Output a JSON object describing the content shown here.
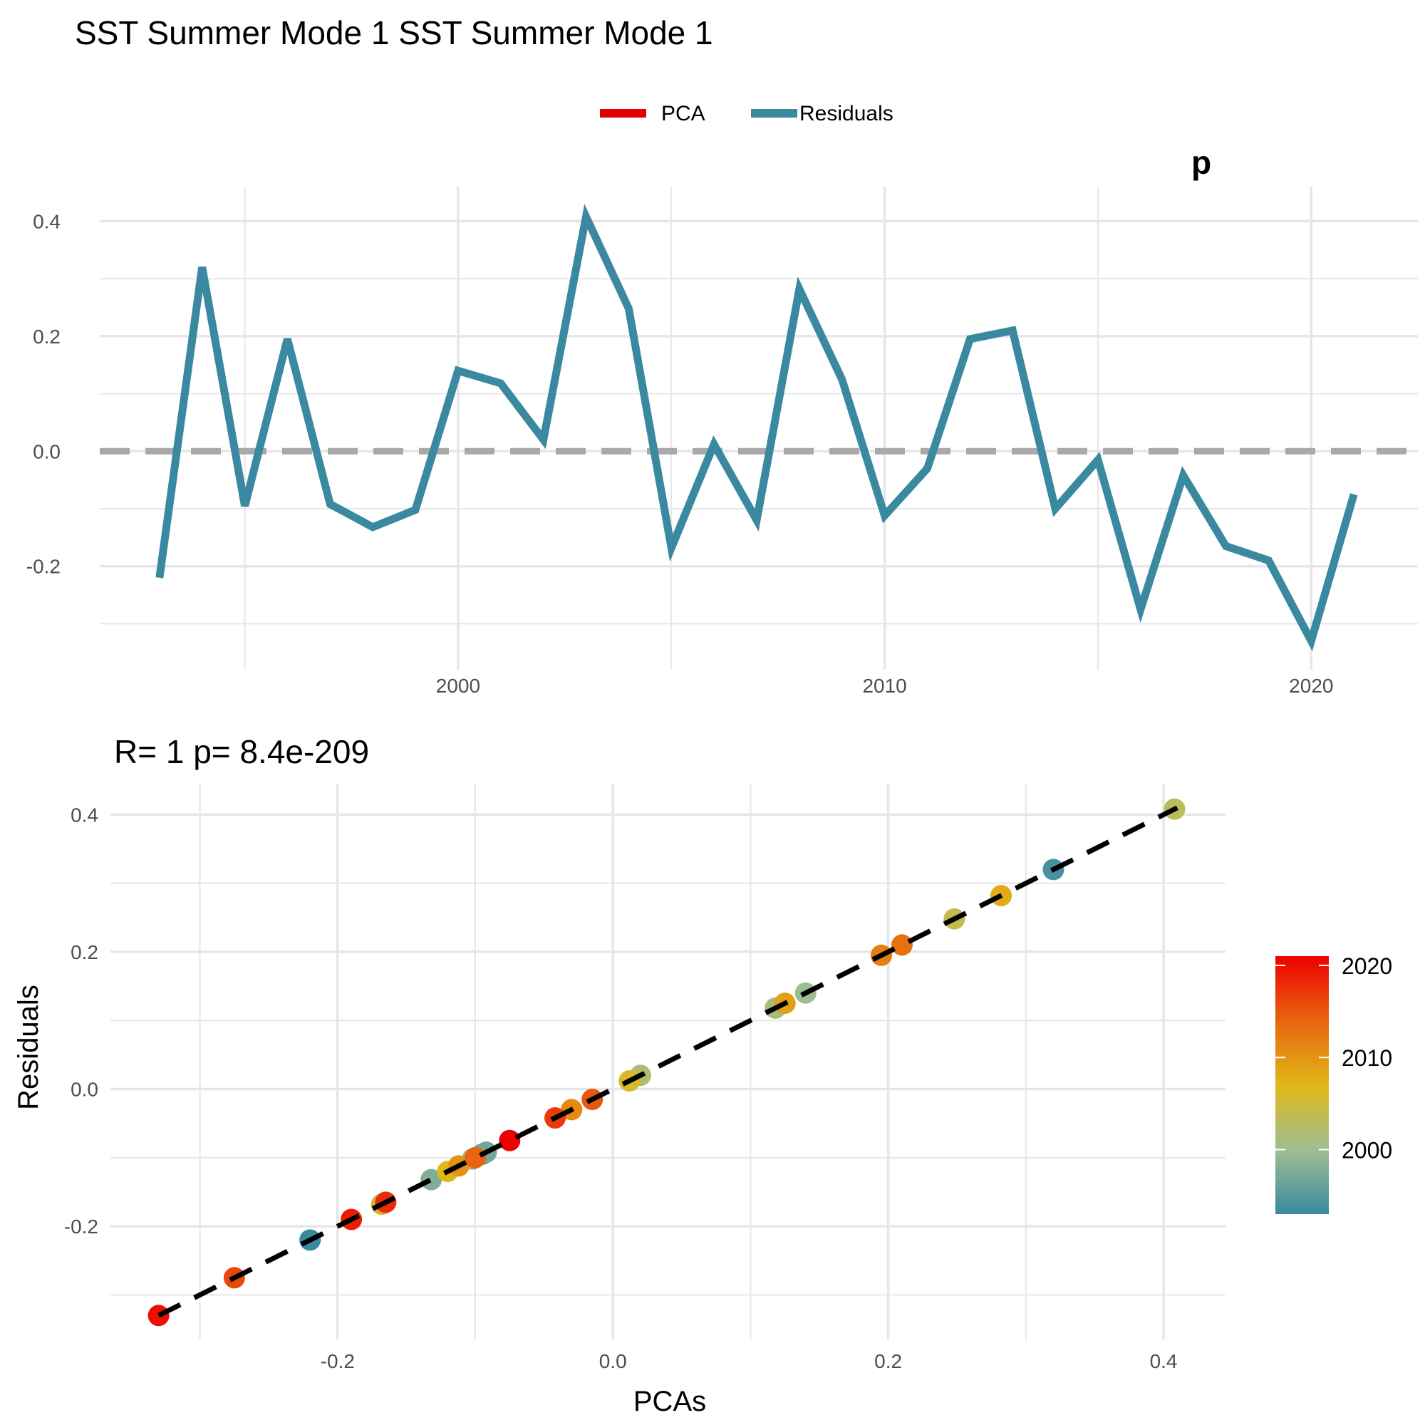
{
  "title": "SST Summer Mode 1 SST Summer Mode 1",
  "colors": {
    "pca": "#e00000",
    "residuals": "#3a89a0",
    "zero_line": "#a9a9a9",
    "fit_line": "#000000",
    "grid": "#e6e6e6",
    "gradient": [
      "#3a89a0",
      "#9ebe91",
      "#e0b818",
      "#e8650e",
      "#ee0000"
    ]
  },
  "chart_data": [
    {
      "type": "line",
      "legend": {
        "position": "top",
        "entries": [
          {
            "label": "PCA",
            "color": "#e00000"
          },
          {
            "label": "Residuals",
            "color": "#3a89a0"
          }
        ]
      },
      "corner_annotation": "p",
      "xlim": [
        1991.6,
        2022.5
      ],
      "ylim": [
        -0.38,
        0.46
      ],
      "xticks": [
        2000,
        2010,
        2020
      ],
      "yticks": [
        -0.2,
        0.0,
        0.2,
        0.4
      ],
      "ytick_labels": [
        "-0.2",
        "0.0",
        "0.2",
        "0.4"
      ],
      "grid": true,
      "reference_line": {
        "y": 0,
        "style": "dashed"
      },
      "series": [
        {
          "name": "Residuals",
          "x": [
            1993,
            1994,
            1995,
            1996,
            1997,
            1998,
            1999,
            2000,
            2001,
            2002,
            2003,
            2004,
            2005,
            2006,
            2007,
            2008,
            2009,
            2010,
            2011,
            2012,
            2013,
            2014,
            2015,
            2016,
            2017,
            2018,
            2019,
            2020,
            2021
          ],
          "y": [
            -0.22,
            0.32,
            -0.095,
            0.195,
            -0.092,
            -0.132,
            -0.102,
            0.14,
            0.118,
            0.02,
            0.408,
            0.248,
            -0.168,
            0.012,
            -0.12,
            0.282,
            0.125,
            -0.112,
            -0.03,
            0.195,
            0.21,
            -0.1,
            -0.015,
            -0.275,
            -0.042,
            -0.165,
            -0.19,
            -0.33,
            -0.075
          ]
        }
      ]
    },
    {
      "type": "scatter",
      "title": "R= 1  p= 8.4e-209",
      "xlabel": "PCAs",
      "ylabel": "Residuals",
      "xlim": [
        -0.365,
        0.445
      ],
      "ylim": [
        -0.365,
        0.445
      ],
      "xticks": [
        -0.2,
        0.0,
        0.2,
        0.4
      ],
      "xtick_labels": [
        "-0.2",
        "0.0",
        "0.2",
        "0.4"
      ],
      "yticks": [
        -0.2,
        0.0,
        0.2,
        0.4
      ],
      "ytick_labels": [
        "-0.2",
        "0.0",
        "0.2",
        "0.4"
      ],
      "grid": true,
      "fit_line": {
        "x": [
          -0.33,
          0.41
        ],
        "y": [
          -0.33,
          0.41
        ],
        "style": "dashed"
      },
      "color_scale": {
        "min": 1993,
        "max": 2021,
        "ticks": [
          2000,
          2010,
          2020
        ],
        "tick_labels": [
          "2000",
          "2010",
          "2020"
        ]
      },
      "points": {
        "year": [
          1993,
          1994,
          1995,
          1996,
          1997,
          1998,
          1999,
          2000,
          2001,
          2002,
          2003,
          2004,
          2005,
          2006,
          2007,
          2008,
          2009,
          2010,
          2011,
          2012,
          2013,
          2014,
          2015,
          2016,
          2017,
          2018,
          2019,
          2020,
          2021
        ],
        "x": [
          -0.22,
          0.32,
          -0.095,
          0.195,
          -0.092,
          -0.132,
          -0.102,
          0.14,
          0.118,
          0.02,
          0.408,
          0.248,
          -0.168,
          0.012,
          -0.12,
          0.282,
          0.125,
          -0.112,
          -0.03,
          0.195,
          0.21,
          -0.1,
          -0.015,
          -0.275,
          -0.042,
          -0.165,
          -0.19,
          -0.33,
          -0.075
        ],
        "y": [
          -0.22,
          0.32,
          -0.095,
          0.195,
          -0.092,
          -0.132,
          -0.102,
          0.14,
          0.118,
          0.02,
          0.408,
          0.248,
          -0.168,
          0.012,
          -0.12,
          0.282,
          0.125,
          -0.112,
          -0.03,
          0.195,
          0.21,
          -0.1,
          -0.015,
          -0.275,
          -0.042,
          -0.165,
          -0.19,
          -0.33,
          -0.075
        ]
      }
    }
  ]
}
